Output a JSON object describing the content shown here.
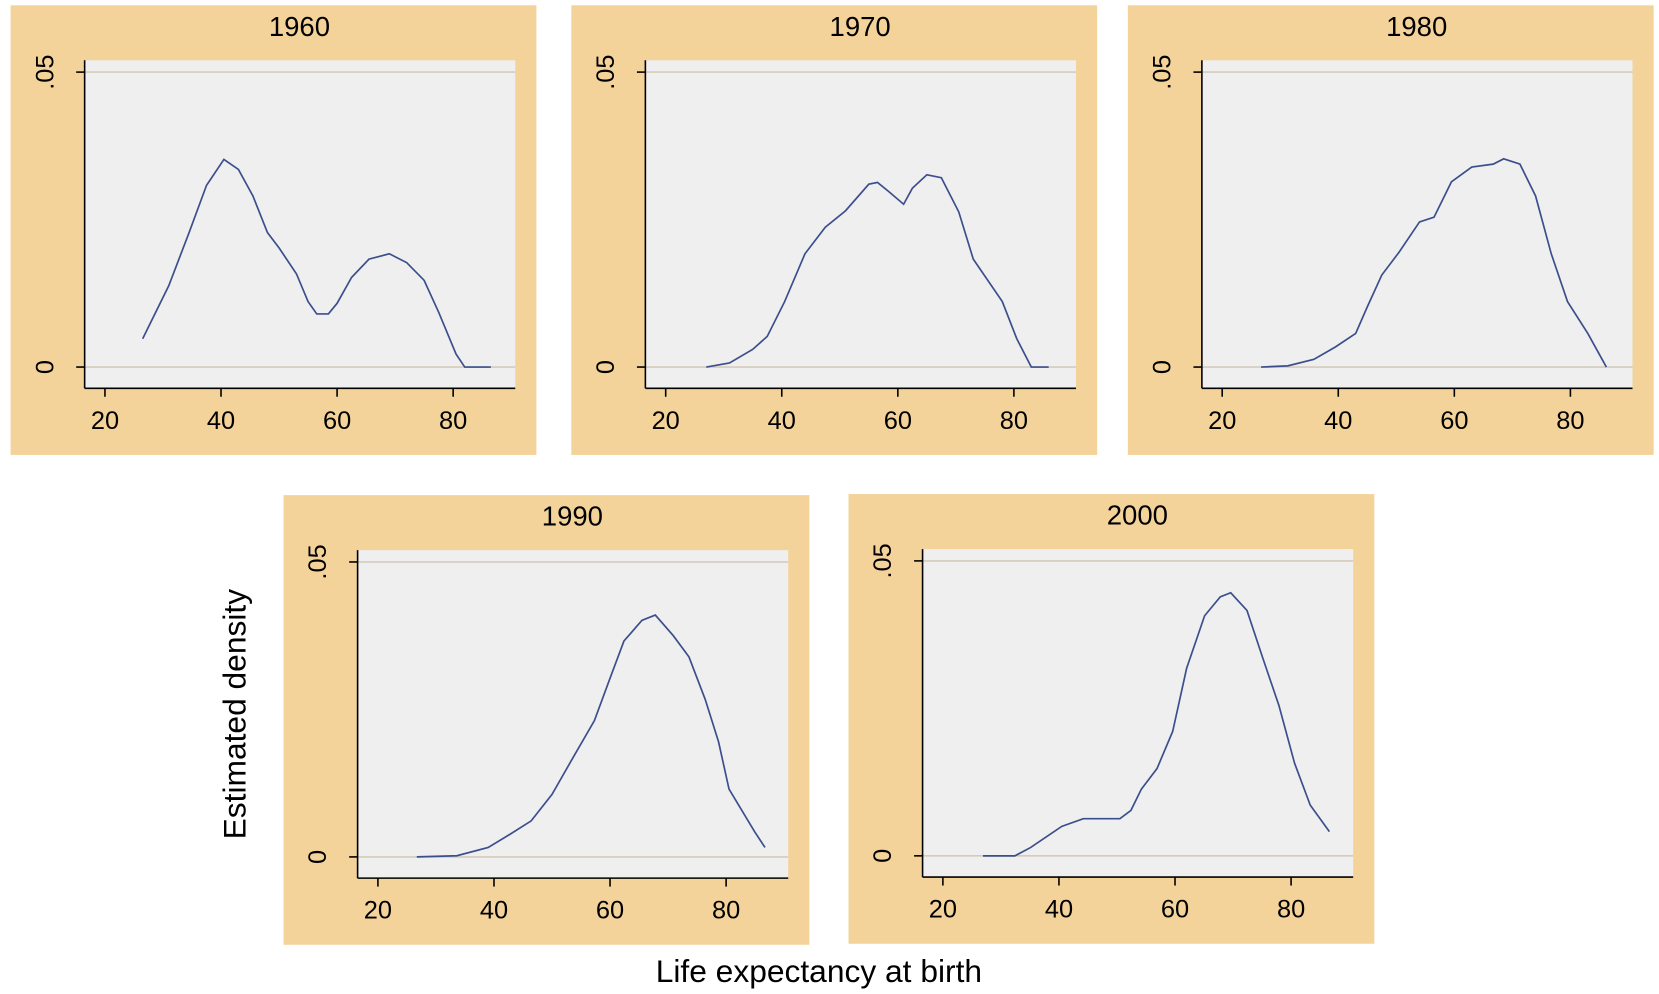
{
  "chart_data": [
    {
      "type": "line",
      "title": "1960",
      "color": "#3b4f8c",
      "grid": true,
      "xlim": [
        16.5,
        90.7
      ],
      "xticks": [
        20,
        40,
        60,
        80
      ],
      "ylim": [
        -0.0036,
        0.052
      ],
      "yticks": [
        0,
        {
          "value": 0.05,
          "label": ".05"
        }
      ],
      "x": [
        26.5,
        31,
        34.5,
        37.5,
        40.5,
        43,
        45.5,
        48,
        50,
        53,
        55,
        56.5,
        58.5,
        60,
        62.5,
        65.5,
        69,
        72,
        75,
        77.5,
        80.5,
        82,
        86.5
      ],
      "values": [
        0.0048,
        0.0138,
        0.0228,
        0.0308,
        0.0352,
        0.0335,
        0.029,
        0.0228,
        0.0202,
        0.0158,
        0.0111,
        0.009,
        0.009,
        0.0108,
        0.0152,
        0.0183,
        0.0192,
        0.0177,
        0.0147,
        0.0093,
        0.0022,
        0,
        0
      ]
    },
    {
      "type": "line",
      "title": "1970",
      "color": "#3b4f8c",
      "grid": true,
      "xlim": [
        16.5,
        90.7
      ],
      "xticks": [
        20,
        40,
        60,
        80
      ],
      "ylim": [
        -0.0036,
        0.052
      ],
      "yticks": [
        0,
        {
          "value": 0.05,
          "label": ".05"
        }
      ],
      "x": [
        27,
        31,
        35,
        37.5,
        40.5,
        44,
        47.5,
        51,
        55,
        56.5,
        58.5,
        61,
        62.5,
        65,
        67.5,
        70.5,
        73,
        78,
        80.5,
        83,
        86
      ],
      "values": [
        0,
        0.0007,
        0.003,
        0.0052,
        0.0111,
        0.0192,
        0.0237,
        0.0265,
        0.031,
        0.0313,
        0.0297,
        0.0276,
        0.0303,
        0.0326,
        0.0321,
        0.0263,
        0.0183,
        0.0111,
        0.0048,
        0,
        0
      ]
    },
    {
      "type": "line",
      "title": "1980",
      "color": "#3b4f8c",
      "grid": true,
      "xlim": [
        16.5,
        90.7
      ],
      "xticks": [
        20,
        40,
        60,
        80
      ],
      "ylim": [
        -0.0036,
        0.052
      ],
      "yticks": [
        0,
        {
          "value": 0.05,
          "label": ".05"
        }
      ],
      "x": [
        26.7,
        31.3,
        35.8,
        39.5,
        43,
        45,
        47.5,
        50.5,
        54,
        56.5,
        59.5,
        63,
        66.7,
        68.5,
        71.3,
        74,
        76.7,
        79.5,
        83,
        86.2
      ],
      "values": [
        0,
        0.0002,
        0.0013,
        0.0034,
        0.0057,
        0.0102,
        0.0156,
        0.0195,
        0.0246,
        0.0254,
        0.0314,
        0.0339,
        0.0344,
        0.0353,
        0.0344,
        0.029,
        0.0192,
        0.0111,
        0.0057,
        0
      ]
    },
    {
      "type": "line",
      "title": "1990",
      "color": "#3b4f8c",
      "grid": true,
      "xlim": [
        16.5,
        90.7
      ],
      "xticks": [
        20,
        40,
        60,
        80
      ],
      "ylim": [
        -0.0036,
        0.052
      ],
      "yticks": [
        0,
        {
          "value": 0.05,
          "label": ".05"
        }
      ],
      "x": [
        26.7,
        33.6,
        39,
        42.7,
        46.4,
        50,
        53.6,
        57.3,
        60,
        62.4,
        65.5,
        67.8,
        70.9,
        73.6,
        76.4,
        78.7,
        80.5,
        82.7,
        84.9,
        86.7
      ],
      "values": [
        0,
        0.0002,
        0.0016,
        0.0038,
        0.0061,
        0.0106,
        0.0168,
        0.0231,
        0.0303,
        0.0366,
        0.0401,
        0.041,
        0.0375,
        0.0339,
        0.0267,
        0.0195,
        0.0115,
        0.0079,
        0.0043,
        0.0016
      ]
    },
    {
      "type": "line",
      "title": "2000",
      "color": "#3b4f8c",
      "grid": true,
      "xlim": [
        16.5,
        90.7
      ],
      "xticks": [
        20,
        40,
        60,
        80
      ],
      "ylim": [
        -0.0036,
        0.052
      ],
      "yticks": [
        0,
        {
          "value": 0.05,
          "label": ".05"
        }
      ],
      "x": [
        26.9,
        32.4,
        35.1,
        37.8,
        40.5,
        44.2,
        50.5,
        52.4,
        54.2,
        56.9,
        59.6,
        62,
        65.1,
        67.8,
        69.6,
        72.4,
        75.1,
        77.9,
        80.6,
        83.3,
        86.6
      ],
      "values": [
        0,
        0,
        0.0014,
        0.0032,
        0.005,
        0.0063,
        0.0063,
        0.0077,
        0.0113,
        0.0148,
        0.0211,
        0.0318,
        0.0407,
        0.0439,
        0.0446,
        0.0416,
        0.0336,
        0.0255,
        0.0157,
        0.0086,
        0.0041
      ]
    }
  ],
  "ylabel": "Estimated density",
  "xlabel": "Life expectancy at birth"
}
